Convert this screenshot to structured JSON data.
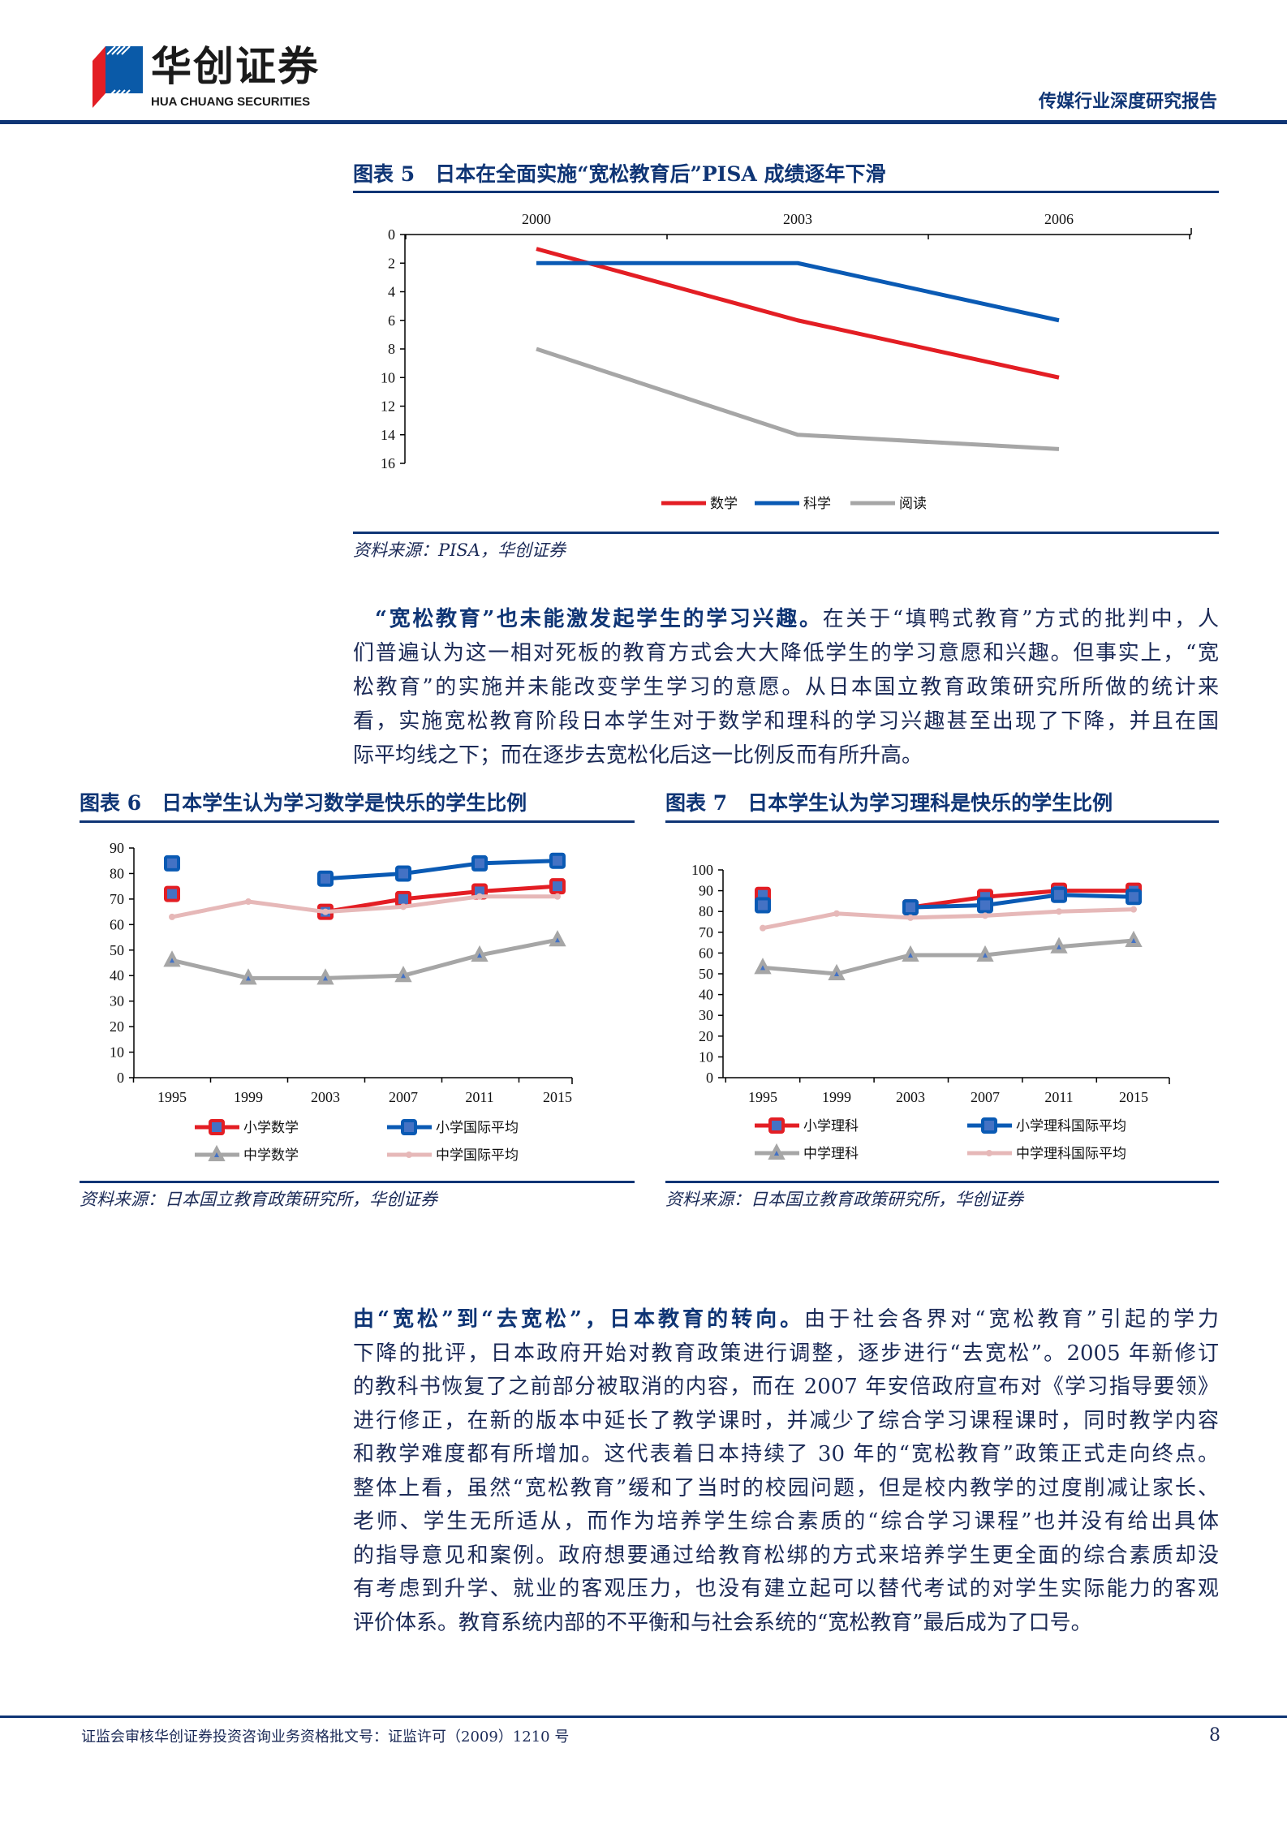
{
  "header": {
    "logo_cn": "华创证券",
    "logo_en": "HUA CHUANG SECURITIES",
    "report_type": "传媒行业深度研究报告",
    "colors": {
      "navy": "#0f3575",
      "logo_red": "#e31e24",
      "logo_blue": "#0a5aa8"
    }
  },
  "figure5": {
    "title": "图表 5　日本在全面实施“宽松教育后”PISA 成绩逐年下滑",
    "source": "资料来源：PISA，华创证券"
  },
  "paragraph1": {
    "lead": "“宽松教育”也未能激发起学生的学习兴趣。",
    "lines": [
      "在关于“填鸭式教育”方式的批判中，人",
      "们普遍认为这一相对死板的教育方式会大大降低学生的学习意愿和兴趣。但事实上，“宽",
      "松教育”的实施并未能改变学生学习的意愿。从日本国立教育政策研究所所做的统计来",
      "看，实施宽松教育阶段日本学生对于数学和理科的学习兴趣甚至出现了下降，并且在国",
      "际平均线之下；而在逐步去宽松化后这一比例反而有所升高。"
    ]
  },
  "figure6": {
    "title": "图表 6　日本学生认为学习数学是快乐的学生比例",
    "source": "资料来源：日本国立教育政策研究所，华创证券"
  },
  "figure7": {
    "title": "图表 7　日本学生认为学习理科是快乐的学生比例",
    "source": "资料来源：日本国立教育政策研究所，华创证券"
  },
  "paragraph2": {
    "lead": "由“宽松”到“去宽松”，日本教育的转向。",
    "lines": [
      "由于社会各界对“宽松教育”引起的学力",
      "下降的批评，日本政府开始对教育政策进行调整，逐步进行“去宽松”。2005 年新修订",
      "的教科书恢复了之前部分被取消的内容，而在 2007 年安倍政府宣布对《学习指导要领》",
      "进行修正，在新的版本中延长了教学课时，并减少了综合学习课程课时，同时教学内容",
      "和教学难度都有所增加。这代表着日本持续了 30 年的“宽松教育”政策正式走向终点。",
      "整体上看，虽然“宽松教育”缓和了当时的校园问题，但是校内教学的过度削减让家长、",
      "老师、学生无所适从，而作为培养学生综合素质的“综合学习课程”也并没有给出具体",
      "的指导意见和案例。政府想要通过给教育松绑的方式来培养学生更全面的综合素质却没",
      "有考虑到升学、就业的客观压力，也没有建立起可以替代考试的对学生实际能力的客观",
      "评价体系。教育系统内部的不平衡和与社会系统的“宽松教育”最后成为了口号。"
    ]
  },
  "footer": {
    "license": "证监会审核华创证券投资咨询业务资格批文号：证监许可（2009）1210 号",
    "page_number": "8"
  },
  "chart_data": [
    {
      "id": "figure5",
      "type": "line",
      "categories": [
        "2000",
        "2003",
        "2006"
      ],
      "x_axis_position": "top",
      "ylim": [
        0,
        16
      ],
      "y_inverted": true,
      "yticks": [
        0,
        2,
        4,
        6,
        8,
        10,
        12,
        14,
        16
      ],
      "grid": false,
      "legend": "bottom",
      "series": [
        {
          "name": "数学",
          "values": [
            1,
            6,
            10
          ],
          "color": "#e31e24",
          "marker": "none"
        },
        {
          "name": "科学",
          "values": [
            2,
            2,
            6
          ],
          "color": "#0a5ab4",
          "marker": "none"
        },
        {
          "name": "阅读",
          "values": [
            8,
            14,
            15
          ],
          "color": "#a6a6a6",
          "marker": "none"
        }
      ]
    },
    {
      "id": "figure6",
      "type": "line",
      "categories": [
        "1995",
        "1999",
        "2003",
        "2007",
        "2011",
        "2015"
      ],
      "ylim": [
        0,
        90
      ],
      "yticks": [
        0,
        10,
        20,
        30,
        40,
        50,
        60,
        70,
        80,
        90
      ],
      "grid": false,
      "legend": "bottom",
      "series": [
        {
          "name": "小学数学",
          "values": [
            72,
            null,
            65,
            70,
            73,
            75
          ],
          "color": "#e31e24",
          "marker": "square"
        },
        {
          "name": "小学国际平均",
          "values": [
            84,
            null,
            78,
            80,
            84,
            85
          ],
          "color": "#0a5ab4",
          "marker": "square"
        },
        {
          "name": "中学数学",
          "values": [
            46,
            39,
            39,
            40,
            48,
            54
          ],
          "color": "#a6a6a6",
          "marker": "triangle"
        },
        {
          "name": "中学国际平均",
          "values": [
            63,
            69,
            65,
            67,
            71,
            71
          ],
          "color": "#e6b8b8",
          "marker": "dot"
        }
      ]
    },
    {
      "id": "figure7",
      "type": "line",
      "categories": [
        "1995",
        "1999",
        "2003",
        "2007",
        "2011",
        "2015"
      ],
      "ylim": [
        0,
        100
      ],
      "yticks": [
        0,
        10,
        20,
        30,
        40,
        50,
        60,
        70,
        80,
        90,
        100
      ],
      "grid": false,
      "legend": "bottom",
      "series": [
        {
          "name": "小学理科",
          "values": [
            88,
            null,
            82,
            87,
            90,
            90
          ],
          "color": "#e31e24",
          "marker": "square"
        },
        {
          "name": "小学理科国际平均",
          "values": [
            83,
            null,
            82,
            83,
            88,
            87
          ],
          "color": "#0a5ab4",
          "marker": "square"
        },
        {
          "name": "中学理科",
          "values": [
            53,
            50,
            59,
            59,
            63,
            66
          ],
          "color": "#a6a6a6",
          "marker": "triangle"
        },
        {
          "name": "中学理科国际平均",
          "values": [
            72,
            79,
            77,
            78,
            80,
            81
          ],
          "color": "#e6b8b8",
          "marker": "dot"
        }
      ]
    }
  ]
}
